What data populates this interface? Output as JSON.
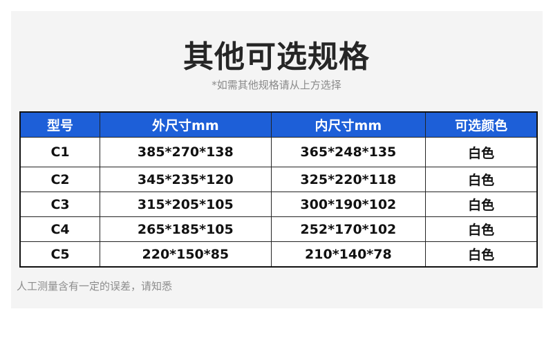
{
  "title": "其他可选规格",
  "subtitle": "*如需其他规格请从上方选择",
  "colors": {
    "header_bg": "#1d5fd8",
    "panel_bg": "#f4f4f4"
  },
  "table": {
    "headers": [
      "型号",
      "外尺寸mm",
      "内尺寸mm",
      "可选颜色"
    ],
    "rows": [
      [
        "C1",
        "385*270*138",
        "365*248*135",
        "白色"
      ],
      [
        "C2",
        "345*235*120",
        "325*220*118",
        "白色"
      ],
      [
        "C3",
        "315*205*105",
        "300*190*102",
        "白色"
      ],
      [
        "C4",
        "265*185*105",
        "252*170*102",
        "白色"
      ],
      [
        "C5",
        "220*150*85",
        "210*140*78",
        "白色"
      ]
    ]
  },
  "note": "人工测量含有一定的误差，请知悉"
}
